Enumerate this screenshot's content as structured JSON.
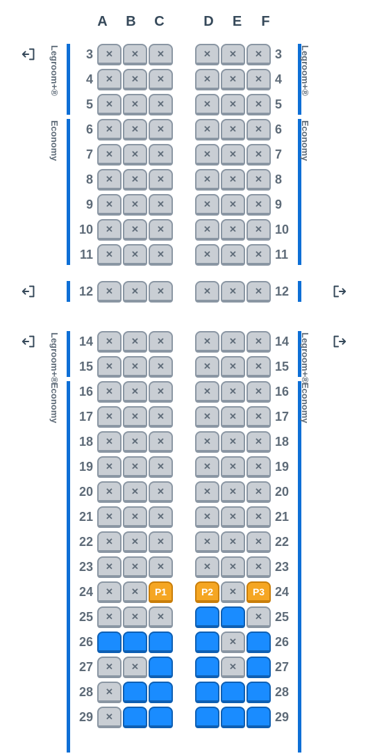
{
  "columns_left": [
    "A",
    "B",
    "C"
  ],
  "columns_right": [
    "D",
    "E",
    "F"
  ],
  "colors": {
    "occupied_bg": "#c9ced4",
    "occupied_border": "#8a96a3",
    "available_bg": "#1a8cff",
    "available_border": "#0e5fb3",
    "passenger_bg": "#f5a623",
    "passenger_border": "#c97e0a",
    "zone_bar": "#0e6fd6",
    "text": "#36495a",
    "muted": "#5e6b78"
  },
  "zones": {
    "legroom": "Legroom+®",
    "economy": "Economy"
  },
  "passengers": {
    "P1": "P1",
    "P2": "P2",
    "P3": "P3"
  },
  "sections": [
    {
      "id": "section1",
      "exits_left": [
        0
      ],
      "exits_right": [],
      "bars_left": [
        {
          "from": 0,
          "to": 2,
          "zone": "legroom"
        },
        {
          "from": 3,
          "to": 8,
          "zone": "economy"
        }
      ],
      "bars_right": [
        {
          "from": 0,
          "to": 2,
          "zone": "legroom"
        },
        {
          "from": 3,
          "to": 8,
          "zone": "economy"
        }
      ],
      "rows": [
        {
          "n": 3,
          "seats": [
            "x",
            "x",
            "x",
            "x",
            "x",
            "x"
          ]
        },
        {
          "n": 4,
          "seats": [
            "x",
            "x",
            "x",
            "x",
            "x",
            "x"
          ]
        },
        {
          "n": 5,
          "seats": [
            "x",
            "x",
            "x",
            "x",
            "x",
            "x"
          ]
        },
        {
          "n": 6,
          "seats": [
            "x",
            "x",
            "x",
            "x",
            "x",
            "x"
          ]
        },
        {
          "n": 7,
          "seats": [
            "x",
            "x",
            "x",
            "x",
            "x",
            "x"
          ]
        },
        {
          "n": 8,
          "seats": [
            "x",
            "x",
            "x",
            "x",
            "x",
            "x"
          ]
        },
        {
          "n": 9,
          "seats": [
            "x",
            "x",
            "x",
            "x",
            "x",
            "x"
          ]
        },
        {
          "n": 10,
          "seats": [
            "x",
            "x",
            "x",
            "x",
            "x",
            "x"
          ]
        },
        {
          "n": 11,
          "seats": [
            "x",
            "x",
            "x",
            "x",
            "x",
            "x"
          ]
        }
      ]
    },
    {
      "id": "section2",
      "exits_left": [
        0,
        2
      ],
      "exits_right": [
        0,
        2
      ],
      "bars_left": [
        {
          "from": 0,
          "to": 0,
          "zone": "legroom",
          "nolabel": true
        },
        {
          "from": 2,
          "to": 3,
          "zone": "legroom"
        },
        {
          "from": 4,
          "to": 18,
          "zone": "economy"
        }
      ],
      "bars_right": [
        {
          "from": 0,
          "to": 0,
          "zone": "legroom",
          "nolabel": true
        },
        {
          "from": 2,
          "to": 3,
          "zone": "legroom"
        },
        {
          "from": 4,
          "to": 18,
          "zone": "economy"
        }
      ],
      "rows": [
        {
          "n": 12,
          "seats": [
            "x",
            "x",
            "x",
            "x",
            "x",
            "x"
          ]
        },
        {
          "gap": true
        },
        {
          "n": 14,
          "seats": [
            "x",
            "x",
            "x",
            "x",
            "x",
            "x"
          ]
        },
        {
          "n": 15,
          "seats": [
            "x",
            "x",
            "x",
            "x",
            "x",
            "x"
          ]
        },
        {
          "n": 16,
          "seats": [
            "x",
            "x",
            "x",
            "x",
            "x",
            "x"
          ]
        },
        {
          "n": 17,
          "seats": [
            "x",
            "x",
            "x",
            "x",
            "x",
            "x"
          ]
        },
        {
          "n": 18,
          "seats": [
            "x",
            "x",
            "x",
            "x",
            "x",
            "x"
          ]
        },
        {
          "n": 19,
          "seats": [
            "x",
            "x",
            "x",
            "x",
            "x",
            "x"
          ]
        },
        {
          "n": 20,
          "seats": [
            "x",
            "x",
            "x",
            "x",
            "x",
            "x"
          ]
        },
        {
          "n": 21,
          "seats": [
            "x",
            "x",
            "x",
            "x",
            "x",
            "x"
          ]
        },
        {
          "n": 22,
          "seats": [
            "x",
            "x",
            "x",
            "x",
            "x",
            "x"
          ]
        },
        {
          "n": 23,
          "seats": [
            "x",
            "x",
            "x",
            "x",
            "x",
            "x"
          ]
        },
        {
          "n": 24,
          "seats": [
            "x",
            "x",
            "P1",
            "P2",
            "x",
            "P3"
          ]
        },
        {
          "n": 25,
          "seats": [
            "x",
            "x",
            "x",
            "a",
            "a",
            "x"
          ]
        },
        {
          "n": 26,
          "seats": [
            "a",
            "a",
            "a",
            "a",
            "x",
            "a"
          ]
        },
        {
          "n": 27,
          "seats": [
            "x",
            "x",
            "a",
            "a",
            "x",
            "a"
          ]
        },
        {
          "n": 28,
          "seats": [
            "x",
            "a",
            "a",
            "a",
            "a",
            "a"
          ]
        },
        {
          "n": 29,
          "seats": [
            "x",
            "a",
            "a",
            "a",
            "a",
            "a"
          ]
        }
      ]
    }
  ]
}
